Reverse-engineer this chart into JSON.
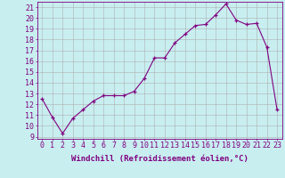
{
  "x": [
    0,
    1,
    2,
    3,
    4,
    5,
    6,
    7,
    8,
    9,
    10,
    11,
    12,
    13,
    14,
    15,
    16,
    17,
    18,
    19,
    20,
    21,
    22,
    23
  ],
  "y": [
    12.5,
    10.8,
    9.3,
    10.7,
    11.5,
    12.3,
    12.8,
    12.8,
    12.8,
    13.2,
    14.4,
    16.3,
    16.3,
    17.7,
    18.5,
    19.3,
    19.4,
    20.3,
    21.3,
    19.8,
    19.4,
    19.5,
    17.3,
    11.5
  ],
  "line_color": "#800080",
  "marker": "+",
  "bg_color": "#c8eef0",
  "grid_color": "#b0b0b0",
  "xlabel": "Windchill (Refroidissement éolien,°C)",
  "xlim": [
    -0.5,
    23.5
  ],
  "ylim": [
    8.8,
    21.5
  ],
  "yticks": [
    9,
    10,
    11,
    12,
    13,
    14,
    15,
    16,
    17,
    18,
    19,
    20,
    21
  ],
  "xticks": [
    0,
    1,
    2,
    3,
    4,
    5,
    6,
    7,
    8,
    9,
    10,
    11,
    12,
    13,
    14,
    15,
    16,
    17,
    18,
    19,
    20,
    21,
    22,
    23
  ],
  "axis_color": "#800080",
  "font_size": 6.0,
  "xlabel_fontsize": 6.5
}
